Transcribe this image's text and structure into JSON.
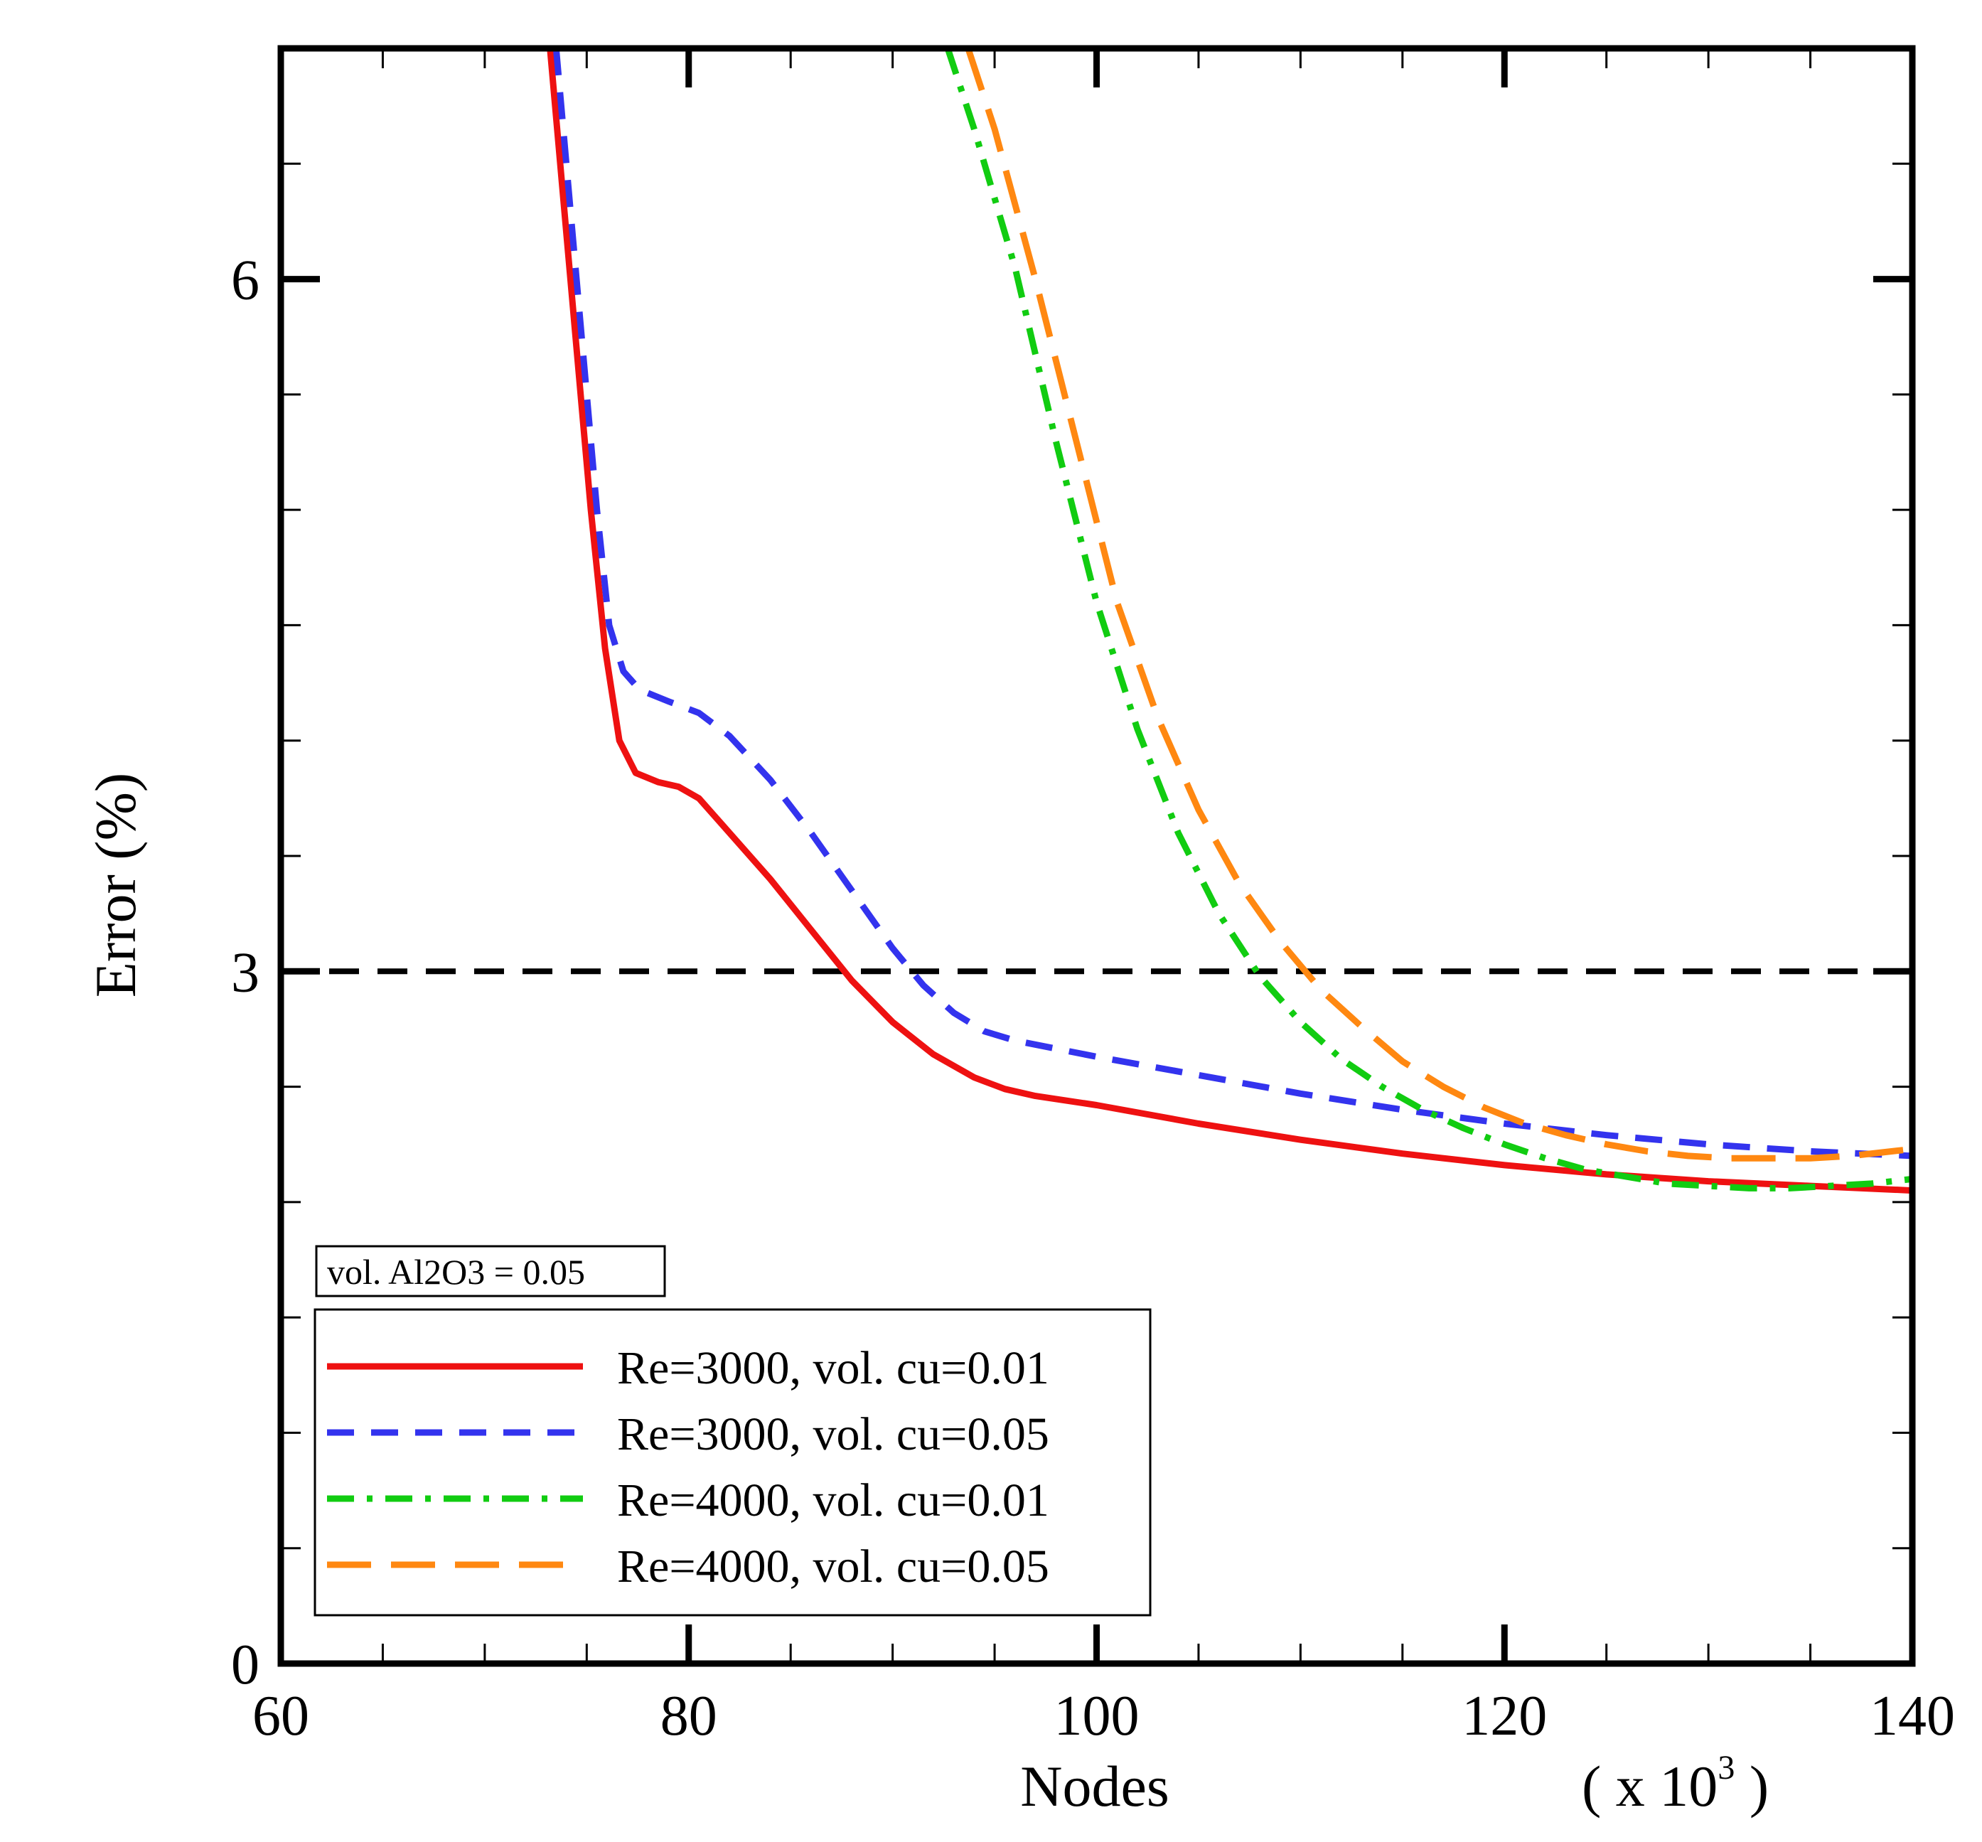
{
  "chart_data": {
    "type": "line",
    "title": "",
    "xlabel": "Nodes",
    "x_multiplier": "( x 10",
    "x_multiplier_exp": "3",
    "x_multiplier_close": " )",
    "ylabel": "Error (%)",
    "xlim": [
      60,
      140
    ],
    "ylim": [
      0,
      7
    ],
    "x_ticks": [
      60,
      80,
      100,
      120,
      140
    ],
    "y_ticks": [
      0,
      3,
      6
    ],
    "x_tick_labels": [
      "60",
      "80",
      "100",
      "120",
      "140"
    ],
    "y_tick_labels": [
      "0",
      "3",
      "6"
    ],
    "threshold": {
      "y": 3,
      "color": "#000000",
      "style": "dashed"
    },
    "annotation": "vol. Al2O3 = 0.05",
    "legend_position": "bottom-left",
    "series": [
      {
        "name": "Re=3000, vol. cu=0.01",
        "color": "#ee1111",
        "style": "solid",
        "x": [
          73.2,
          73.8,
          74.5,
          75.2,
          75.9,
          76.6,
          77.4,
          78.5,
          79.5,
          80.5,
          82,
          84,
          86,
          88,
          90,
          92,
          94,
          95.5,
          97,
          100,
          105,
          110,
          115,
          120,
          125,
          130,
          135,
          140
        ],
        "y": [
          7.0,
          6.4,
          5.7,
          5.0,
          4.4,
          4.0,
          3.86,
          3.82,
          3.8,
          3.75,
          3.6,
          3.4,
          3.18,
          2.96,
          2.78,
          2.64,
          2.54,
          2.49,
          2.46,
          2.42,
          2.34,
          2.27,
          2.21,
          2.16,
          2.12,
          2.09,
          2.07,
          2.05
        ]
      },
      {
        "name": "Re=3000, vol. cu=0.05",
        "color": "#3333ee",
        "style": "dashed",
        "x": [
          73.5,
          74.1,
          74.8,
          75.5,
          76.1,
          76.8,
          77.6,
          79,
          80.5,
          82,
          84,
          86,
          88,
          90,
          91.5,
          93,
          94.5,
          96,
          100,
          105,
          110,
          115,
          120,
          125,
          130,
          135,
          140
        ],
        "y": [
          7.0,
          6.4,
          5.7,
          5.0,
          4.5,
          4.3,
          4.22,
          4.17,
          4.12,
          4.02,
          3.83,
          3.6,
          3.35,
          3.1,
          2.94,
          2.82,
          2.74,
          2.7,
          2.63,
          2.55,
          2.47,
          2.4,
          2.34,
          2.29,
          2.25,
          2.22,
          2.2
        ]
      },
      {
        "name": "Re=4000, vol. cu=0.01",
        "color": "#11cc11",
        "style": "dashdot",
        "x": [
          92.7,
          94,
          96,
          98,
          100,
          102,
          104,
          106,
          108,
          110,
          112,
          114,
          116,
          118,
          120,
          122,
          124,
          126,
          128,
          130,
          132,
          134,
          136,
          138,
          140
        ],
        "y": [
          7.0,
          6.65,
          6.05,
          5.3,
          4.6,
          4.05,
          3.6,
          3.25,
          2.98,
          2.78,
          2.62,
          2.5,
          2.4,
          2.32,
          2.25,
          2.19,
          2.14,
          2.11,
          2.08,
          2.07,
          2.06,
          2.06,
          2.07,
          2.08,
          2.1
        ]
      },
      {
        "name": "Re=4000, vol. cu=0.05",
        "color": "#ff8811",
        "style": "longdash",
        "x": [
          93.7,
          95,
          97,
          99,
          101,
          103,
          105,
          107,
          109,
          111,
          113,
          115,
          117,
          119,
          121,
          123,
          125,
          127,
          129,
          131,
          133,
          135,
          137,
          140
        ],
        "y": [
          7.0,
          6.65,
          6.0,
          5.3,
          4.6,
          4.1,
          3.7,
          3.38,
          3.13,
          2.92,
          2.76,
          2.61,
          2.5,
          2.41,
          2.34,
          2.29,
          2.25,
          2.22,
          2.2,
          2.19,
          2.19,
          2.19,
          2.2,
          2.23
        ]
      }
    ]
  }
}
